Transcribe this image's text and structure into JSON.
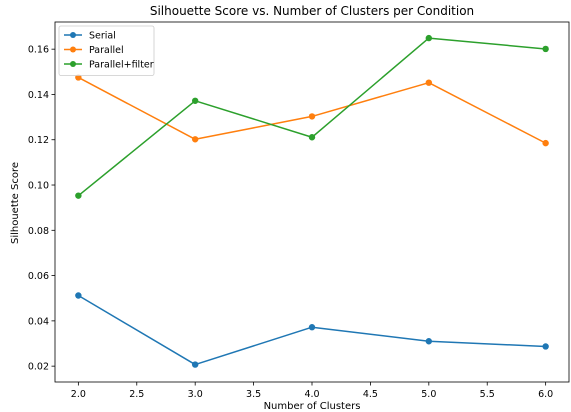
{
  "chart_data": {
    "type": "line",
    "title": "Silhouette Score vs. Number of Clusters per Condition",
    "xlabel": "Number of Clusters",
    "ylabel": "Silhouette Score",
    "xlim": [
      1.8,
      6.2
    ],
    "ylim": [
      0.013,
      0.172
    ],
    "xticks": [
      2.0,
      2.5,
      3.0,
      3.5,
      4.0,
      4.5,
      5.0,
      5.5,
      6.0
    ],
    "yticks": [
      0.02,
      0.04,
      0.06,
      0.08,
      0.1,
      0.12,
      0.14,
      0.16
    ],
    "xtick_labels": [
      "2.0",
      "2.5",
      "3.0",
      "3.5",
      "4.0",
      "4.5",
      "5.0",
      "5.5",
      "6.0"
    ],
    "ytick_labels": [
      "0.02",
      "0.04",
      "0.06",
      "0.08",
      "0.10",
      "0.12",
      "0.14",
      "0.16"
    ],
    "x": [
      2,
      3,
      4,
      5,
      6
    ],
    "legend_position": "top-left",
    "grid": false,
    "series": [
      {
        "name": "Serial",
        "color": "#1f77b4",
        "values": [
          0.0512,
          0.0207,
          0.0372,
          0.031,
          0.0287
        ]
      },
      {
        "name": "Parallel",
        "color": "#ff7f0e",
        "values": [
          0.1475,
          0.1202,
          0.1303,
          0.1452,
          0.1185
        ]
      },
      {
        "name": "Parallel+filter",
        "color": "#2ca02c",
        "values": [
          0.0953,
          0.1372,
          0.1211,
          0.1649,
          0.1601
        ]
      }
    ]
  }
}
